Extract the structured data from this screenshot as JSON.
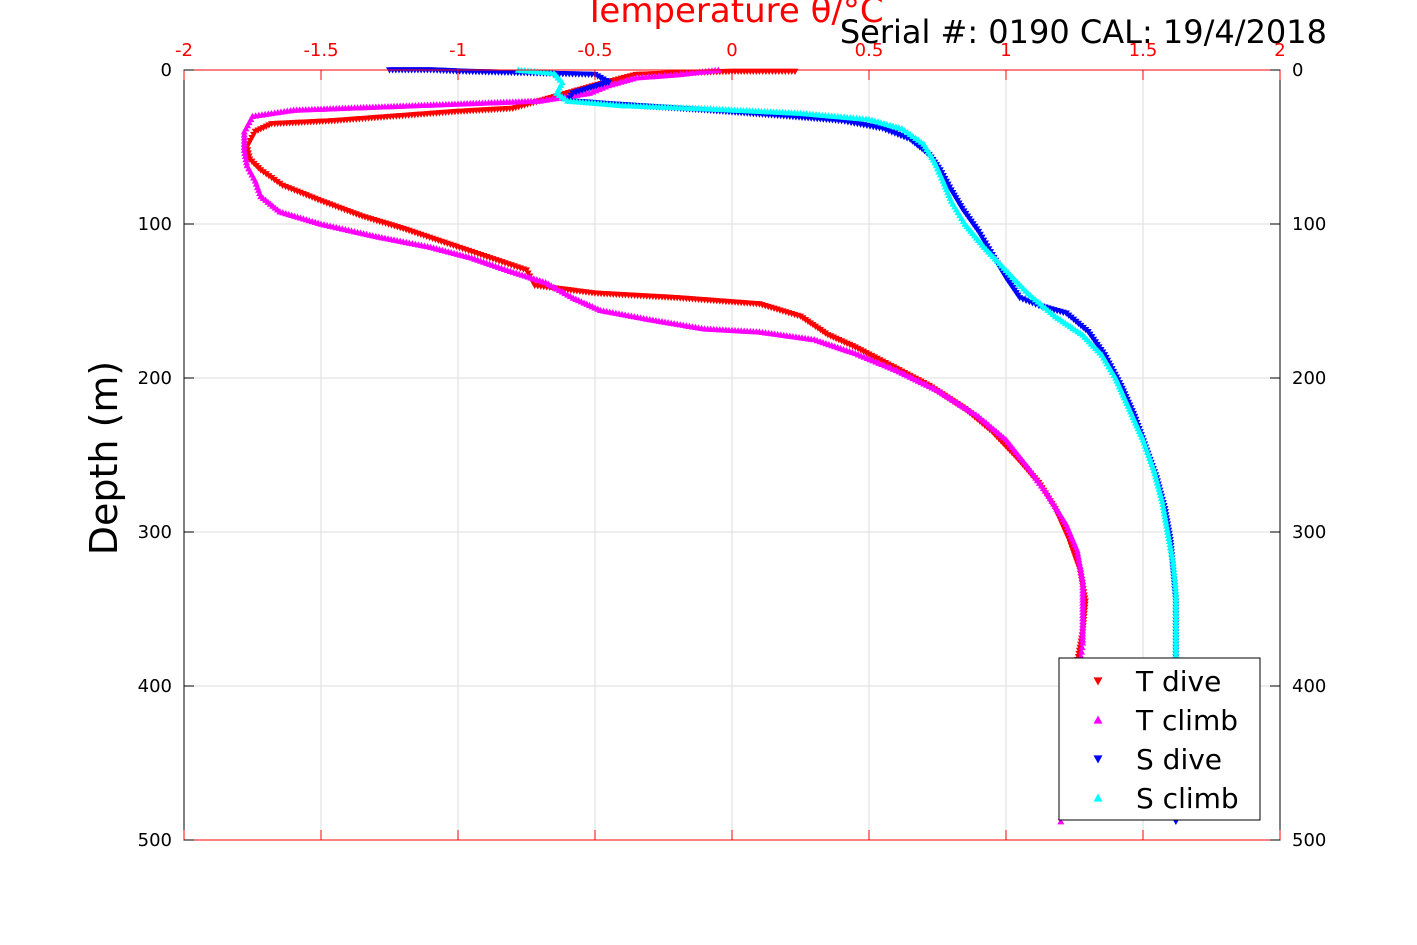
{
  "header": {
    "serial_text": "Serial #: 0190  CAL: 19/4/2018"
  },
  "colors": {
    "axis_top": "#ff0000",
    "axis_frame": "#000000",
    "grid": "#dddddd",
    "t_dive": "#ff0000",
    "t_climb": "#ff00ff",
    "s_dive": "#0000ff",
    "s_climb": "#00ffff"
  },
  "chart_data": {
    "type": "scatter",
    "title": "",
    "xlabel": "Temperature θ/°C",
    "ylabel": "Depth (m)",
    "xlim": [
      -2,
      2
    ],
    "ylim": [
      0,
      500
    ],
    "y_reversed": true,
    "x_ticks": [
      "-2",
      "-1.5",
      "-1",
      "-0.5",
      "0",
      "0.5",
      "1",
      "1.5",
      "2"
    ],
    "y_ticks": [
      "0",
      "100",
      "200",
      "300",
      "400",
      "500"
    ],
    "y_tick_values": [
      0,
      100,
      200,
      300,
      400,
      500
    ],
    "grid": true,
    "legend_position": "bottom-right",
    "series": [
      {
        "name": "T dive",
        "marker": "triangle-down",
        "color": "#ff0000",
        "points": [
          [
            0.23,
            1
          ],
          [
            0.1,
            1
          ],
          [
            0.0,
            1
          ],
          [
            -0.2,
            2
          ],
          [
            -0.35,
            3
          ],
          [
            -0.5,
            10
          ],
          [
            -0.8,
            25
          ],
          [
            -1.0,
            27
          ],
          [
            -1.45,
            33
          ],
          [
            -1.68,
            35
          ],
          [
            -1.74,
            40
          ],
          [
            -1.77,
            50
          ],
          [
            -1.76,
            58
          ],
          [
            -1.72,
            65
          ],
          [
            -1.64,
            75
          ],
          [
            -1.5,
            85
          ],
          [
            -1.35,
            95
          ],
          [
            -1.2,
            103
          ],
          [
            -1.05,
            112
          ],
          [
            -0.95,
            118
          ],
          [
            -0.85,
            124
          ],
          [
            -0.75,
            130
          ],
          [
            -0.72,
            140
          ],
          [
            -0.5,
            145
          ],
          [
            -0.2,
            148
          ],
          [
            0.1,
            152
          ],
          [
            0.25,
            160
          ],
          [
            0.35,
            172
          ],
          [
            0.45,
            180
          ],
          [
            0.58,
            192
          ],
          [
            0.72,
            205
          ],
          [
            0.85,
            220
          ],
          [
            0.95,
            235
          ],
          [
            1.03,
            250
          ],
          [
            1.12,
            268
          ],
          [
            1.18,
            285
          ],
          [
            1.23,
            305
          ],
          [
            1.27,
            325
          ],
          [
            1.29,
            345
          ],
          [
            1.28,
            365
          ],
          [
            1.26,
            385
          ]
        ]
      },
      {
        "name": "T climb",
        "marker": "triangle-up",
        "color": "#ff00ff",
        "points": [
          [
            -0.05,
            0
          ],
          [
            -0.2,
            3
          ],
          [
            -0.35,
            5
          ],
          [
            -0.45,
            10
          ],
          [
            -0.52,
            15
          ],
          [
            -0.7,
            20
          ],
          [
            -1.0,
            22
          ],
          [
            -1.3,
            24
          ],
          [
            -1.6,
            26
          ],
          [
            -1.75,
            30
          ],
          [
            -1.78,
            40
          ],
          [
            -1.78,
            52
          ],
          [
            -1.77,
            62
          ],
          [
            -1.74,
            72
          ],
          [
            -1.72,
            82
          ],
          [
            -1.65,
            92
          ],
          [
            -1.5,
            100
          ],
          [
            -1.3,
            108
          ],
          [
            -1.1,
            115
          ],
          [
            -0.95,
            122
          ],
          [
            -0.82,
            130
          ],
          [
            -0.68,
            138
          ],
          [
            -0.58,
            148
          ],
          [
            -0.48,
            156
          ],
          [
            -0.3,
            162
          ],
          [
            -0.1,
            168
          ],
          [
            0.1,
            170
          ],
          [
            0.3,
            175
          ],
          [
            0.45,
            184
          ],
          [
            0.6,
            195
          ],
          [
            0.75,
            208
          ],
          [
            0.9,
            225
          ],
          [
            1.0,
            240
          ],
          [
            1.08,
            258
          ],
          [
            1.15,
            275
          ],
          [
            1.22,
            295
          ],
          [
            1.26,
            312
          ],
          [
            1.28,
            332
          ],
          [
            1.28,
            352
          ],
          [
            1.28,
            372
          ],
          [
            1.2,
            488
          ]
        ]
      },
      {
        "name": "S dive",
        "marker": "triangle-down",
        "color": "#0000ff",
        "points": [
          [
            -1.25,
            0
          ],
          [
            -1.1,
            0
          ],
          [
            -0.97,
            1
          ],
          [
            -0.5,
            3
          ],
          [
            -0.45,
            8
          ],
          [
            -0.58,
            15
          ],
          [
            -0.6,
            20
          ],
          [
            -0.45,
            22
          ],
          [
            -0.1,
            26
          ],
          [
            0.2,
            30
          ],
          [
            0.4,
            33
          ],
          [
            0.55,
            38
          ],
          [
            0.65,
            45
          ],
          [
            0.72,
            55
          ],
          [
            0.76,
            65
          ],
          [
            0.8,
            78
          ],
          [
            0.84,
            90
          ],
          [
            0.9,
            105
          ],
          [
            0.95,
            120
          ],
          [
            1.0,
            135
          ],
          [
            1.05,
            148
          ],
          [
            1.12,
            153
          ],
          [
            1.22,
            158
          ],
          [
            1.3,
            170
          ],
          [
            1.36,
            185
          ],
          [
            1.42,
            205
          ],
          [
            1.47,
            225
          ],
          [
            1.51,
            245
          ],
          [
            1.55,
            265
          ],
          [
            1.58,
            285
          ],
          [
            1.6,
            305
          ],
          [
            1.61,
            325
          ],
          [
            1.62,
            345
          ],
          [
            1.62,
            365
          ],
          [
            1.62,
            385
          ],
          [
            1.62,
            488
          ]
        ]
      },
      {
        "name": "S climb",
        "marker": "triangle-up",
        "color": "#00ffff",
        "points": [
          [
            -0.78,
            0
          ],
          [
            -0.65,
            2
          ],
          [
            -0.62,
            8
          ],
          [
            -0.64,
            15
          ],
          [
            -0.6,
            20
          ],
          [
            -0.4,
            23
          ],
          [
            -0.1,
            25
          ],
          [
            0.25,
            28
          ],
          [
            0.5,
            32
          ],
          [
            0.62,
            38
          ],
          [
            0.7,
            48
          ],
          [
            0.74,
            60
          ],
          [
            0.77,
            72
          ],
          [
            0.8,
            85
          ],
          [
            0.85,
            100
          ],
          [
            0.92,
            115
          ],
          [
            1.0,
            130
          ],
          [
            1.08,
            145
          ],
          [
            1.18,
            160
          ],
          [
            1.28,
            172
          ],
          [
            1.35,
            185
          ],
          [
            1.4,
            200
          ],
          [
            1.45,
            220
          ],
          [
            1.5,
            240
          ],
          [
            1.54,
            260
          ],
          [
            1.57,
            280
          ],
          [
            1.59,
            300
          ],
          [
            1.61,
            320
          ],
          [
            1.62,
            340
          ],
          [
            1.62,
            360
          ],
          [
            1.62,
            380
          ]
        ]
      }
    ]
  }
}
